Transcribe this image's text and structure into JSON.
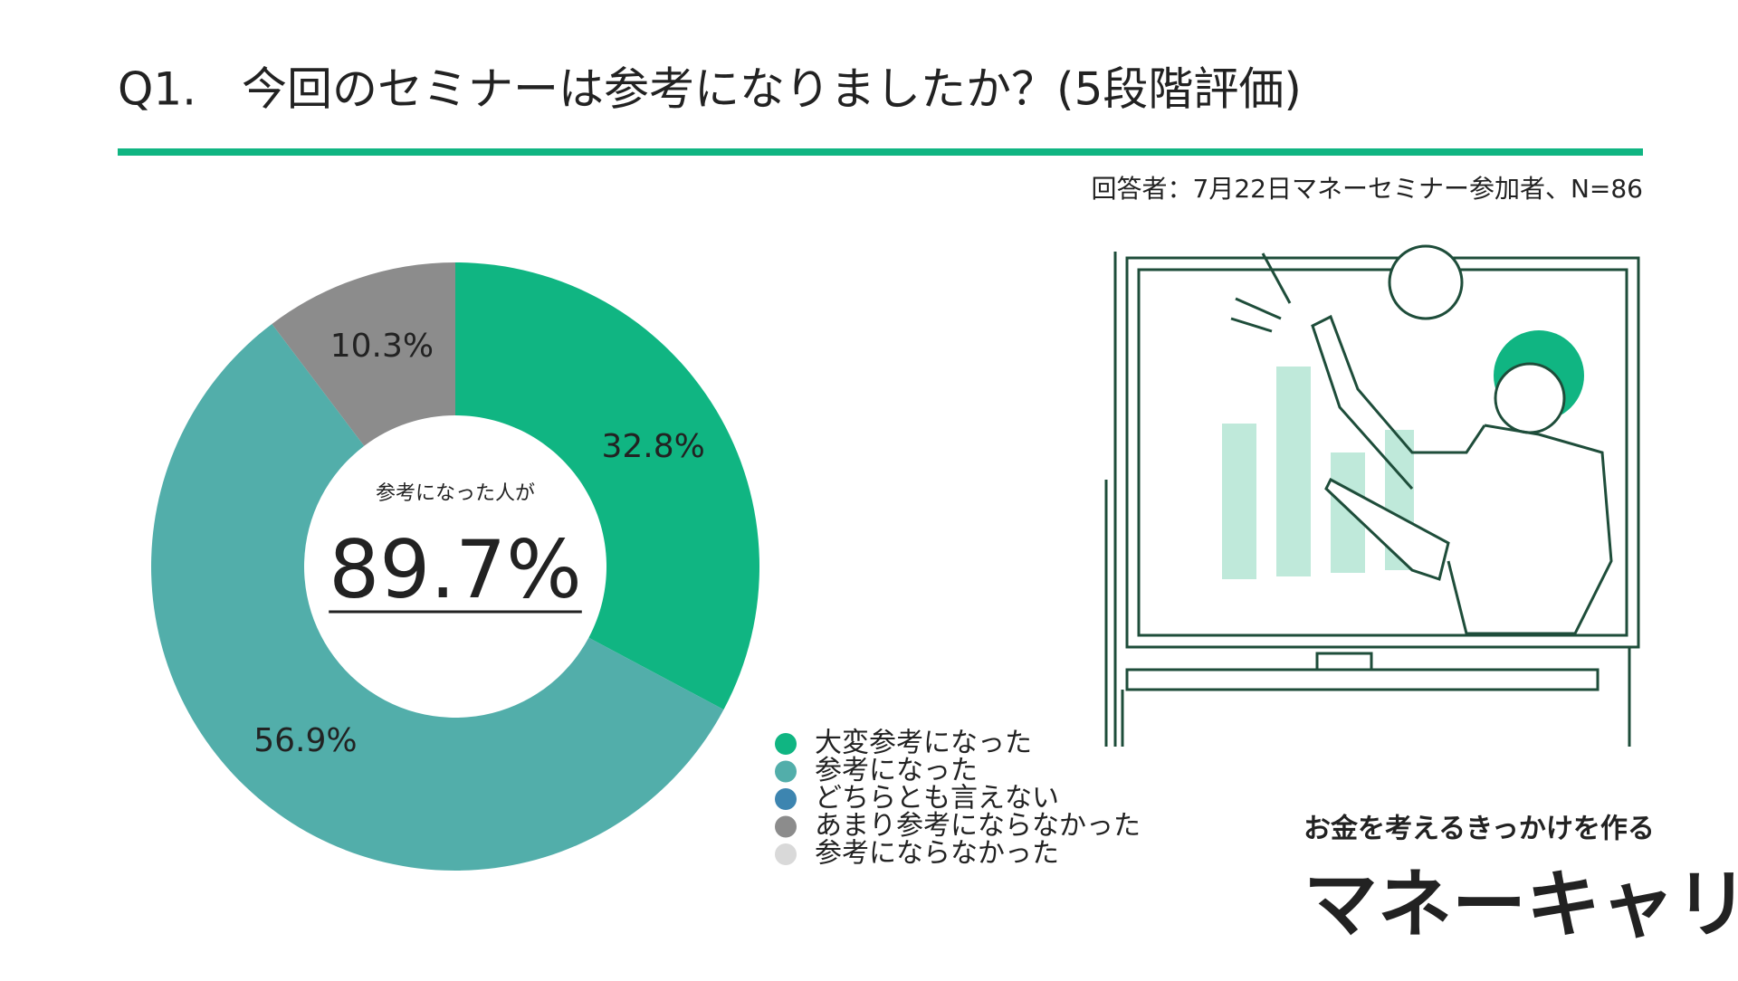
{
  "chart_data": {
    "type": "pie",
    "title": "Q1.　今回のセミナーは参考になりましたか？(5段階評価)",
    "subtitle": "回答者：7月22日マネーセミナー参加者、N=86",
    "center_caption": "参考になった人が",
    "center_value": "89.7%",
    "categories": [
      "大変参考になった",
      "参考になった",
      "どちらとも言えない",
      "あまり参考にならなかった",
      "参考にならなかった"
    ],
    "values": [
      32.8,
      56.9,
      0,
      10.3,
      0
    ],
    "value_labels": [
      "32.8%",
      "56.9%",
      null,
      "10.3%",
      null
    ],
    "colors": [
      "#10b582",
      "#52aeaa",
      "#3d85b0",
      "#8c8c8c",
      "#d9d9d9"
    ]
  },
  "logo": {
    "tagline": "お金を考えるきっかけを作る",
    "brand": "マネーキャリア"
  }
}
